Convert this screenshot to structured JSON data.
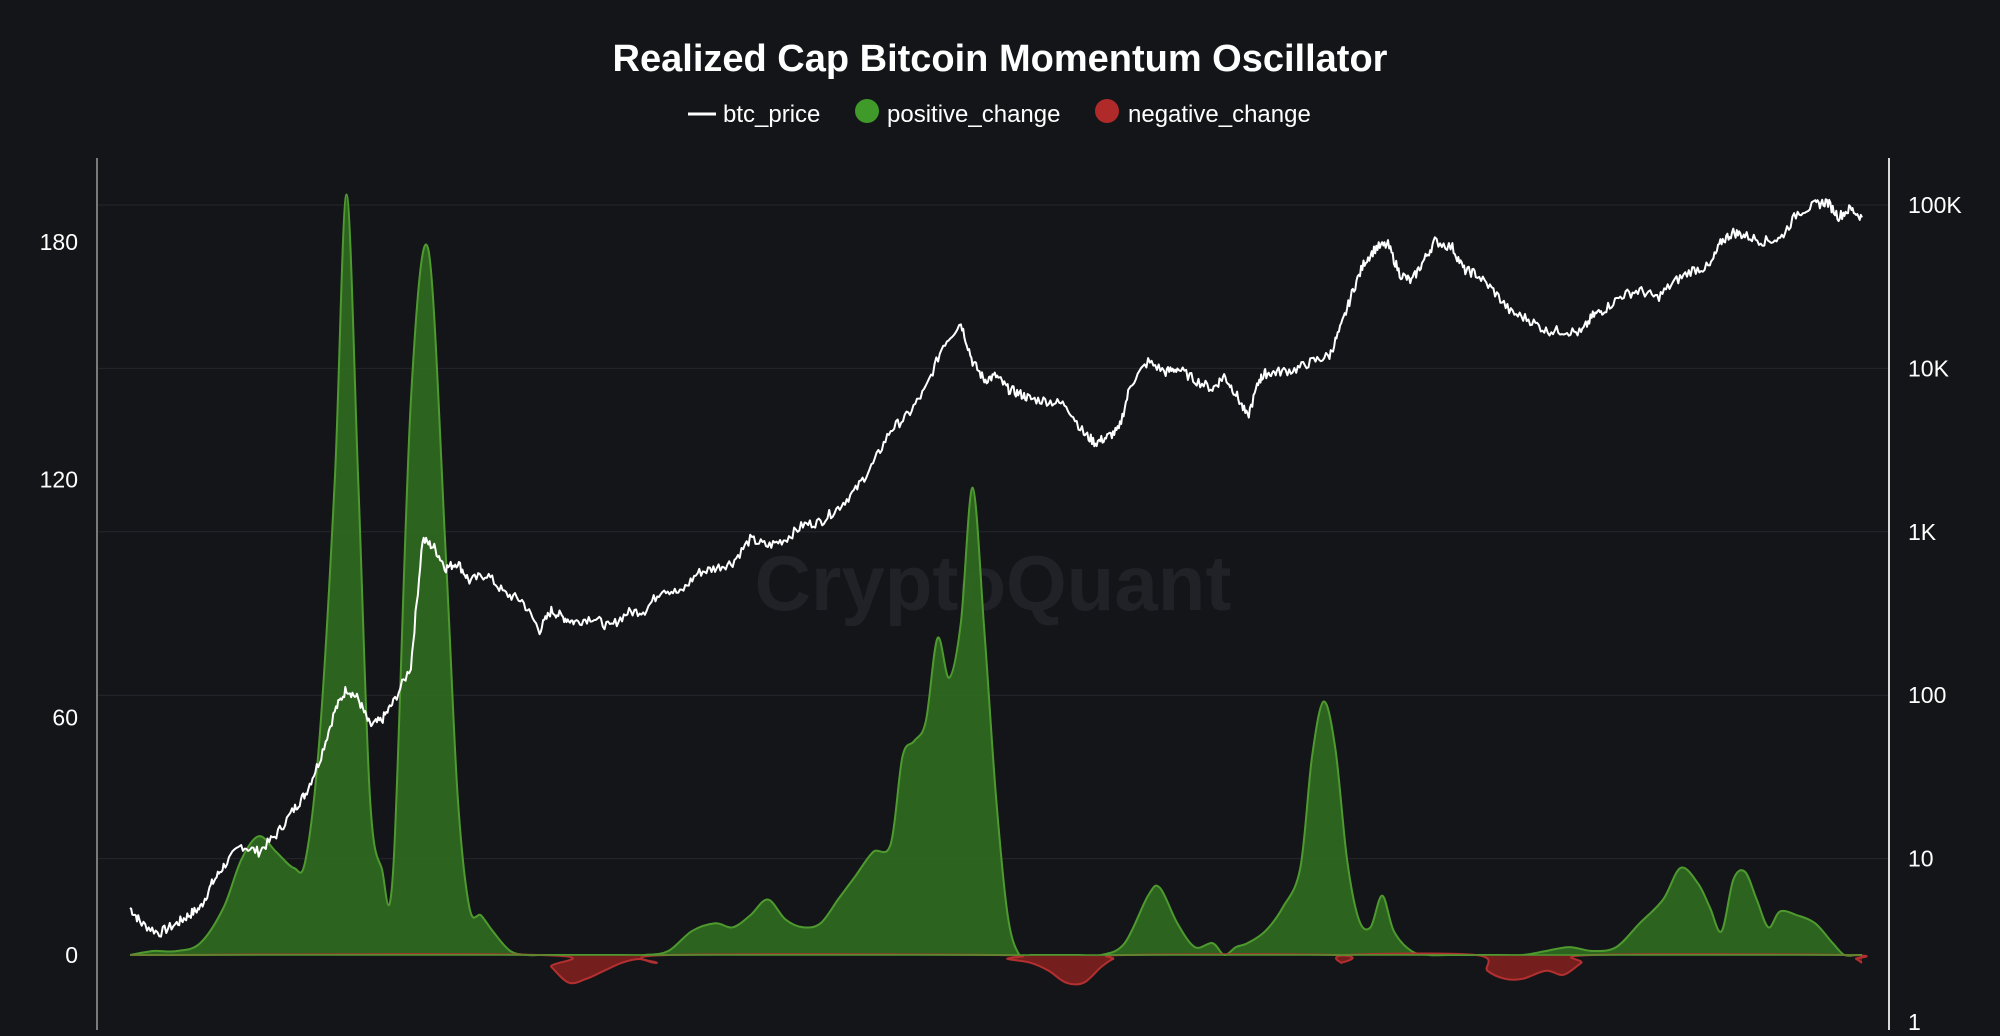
{
  "colors": {
    "background": "#141519",
    "grid": "#24262c",
    "axis": "#d8d8d8",
    "price_line": "#ffffff",
    "positive_fill": "#2f6b1f",
    "positive_stroke": "#4e9a2f",
    "negative_fill": "#7a1f1f",
    "negative_stroke": "#b33030",
    "legend_positive": "#3f9a2a",
    "legend_negative": "#b02a2a"
  },
  "watermark": "CryptoQuant",
  "chart_data": {
    "type": "area",
    "title": "Realized Cap Bitcoin Momentum Oscillator",
    "legend": {
      "placement": "top-center",
      "entries": [
        "btc_price",
        "positive_change",
        "negative_change"
      ]
    },
    "x_range": [
      2010.5,
      2025.3
    ],
    "left_axis": {
      "ticks": [
        0,
        60,
        120,
        180
      ],
      "tick_labels": [
        "0",
        "60",
        "120",
        "180"
      ],
      "range": [
        -18,
        202
      ]
    },
    "right_axis": {
      "scale": "log",
      "ticks": [
        1,
        10,
        100,
        1000,
        10000,
        100000
      ],
      "tick_labels": [
        "1",
        "10",
        "100",
        "1K",
        "10K",
        "100K"
      ],
      "range": [
        1,
        180000
      ]
    },
    "grid": true,
    "series": [
      {
        "name": "positive_change",
        "axis": "left",
        "x": [
          2010.5,
          2010.7,
          2010.9,
          2011.1,
          2011.3,
          2011.45,
          2011.6,
          2011.75,
          2011.9,
          2012.0,
          2012.12,
          2012.25,
          2012.35,
          2012.45,
          2012.55,
          2012.65,
          2012.75,
          2012.9,
          2013.05,
          2013.2,
          2013.3,
          2013.4,
          2013.5,
          2013.6,
          2013.75,
          2013.9,
          2014.0,
          2014.1,
          2014.2,
          2014.3,
          2014.4,
          2014.55,
          2014.7,
          2014.9,
          2015.1,
          2015.3,
          2015.5,
          2015.65,
          2015.8,
          2015.95,
          2016.1,
          2016.25,
          2016.4,
          2016.55,
          2016.7,
          2016.85,
          2017.0,
          2017.1,
          2017.2,
          2017.3,
          2017.4,
          2017.5,
          2017.6,
          2017.7,
          2017.8,
          2017.9,
          2018.0,
          2018.1,
          2018.2,
          2018.4,
          2018.6,
          2018.8,
          2019.0,
          2019.2,
          2019.3,
          2019.45,
          2019.6,
          2019.75,
          2019.85,
          2019.95,
          2020.05,
          2020.2,
          2020.35,
          2020.5,
          2020.6,
          2020.7,
          2020.8,
          2020.9,
          2021.0,
          2021.1,
          2021.2,
          2021.3,
          2021.45,
          2021.6,
          2021.75,
          2021.85,
          2022.0,
          2022.2,
          2022.4,
          2022.6,
          2022.8,
          2023.0,
          2023.2,
          2023.4,
          2023.6,
          2023.75,
          2023.9,
          2024.0,
          2024.1,
          2024.2,
          2024.3,
          2024.4,
          2024.5,
          2024.6,
          2024.75,
          2024.9,
          2025.05,
          2025.15,
          2025.25,
          2025.3
        ],
        "values": [
          0,
          1,
          1,
          3,
          12,
          24,
          30,
          26,
          22,
          24,
          55,
          120,
          192,
          120,
          40,
          22,
          22,
          140,
          178,
          100,
          40,
          12,
          10,
          6,
          1,
          0,
          0,
          0,
          0,
          0,
          0,
          0,
          0,
          0,
          1,
          6,
          8,
          7,
          10,
          14,
          9,
          7,
          8,
          14,
          20,
          26,
          28,
          50,
          54,
          59,
          80,
          70,
          84,
          118,
          82,
          40,
          10,
          0,
          0,
          0,
          0,
          0,
          3,
          15,
          17,
          8,
          2,
          3,
          0,
          2,
          3,
          6,
          12,
          22,
          50,
          64,
          52,
          24,
          9,
          7,
          15,
          6,
          1,
          0,
          0,
          0,
          0,
          0,
          0,
          1,
          2,
          1,
          2,
          8,
          14,
          22,
          18,
          12,
          6,
          19,
          21,
          14,
          7,
          11,
          10,
          8,
          3,
          0,
          0,
          0
        ]
      },
      {
        "name": "negative_change",
        "axis": "left",
        "x": [
          2010.5,
          2014.0,
          2014.1,
          2014.25,
          2014.4,
          2014.55,
          2014.7,
          2014.85,
          2015.0,
          2015.1,
          2017.9,
          2018.0,
          2018.2,
          2018.35,
          2018.5,
          2018.65,
          2018.8,
          2018.9,
          2019.0,
          2020.8,
          2020.85,
          2020.9,
          2022.0,
          2022.1,
          2022.25,
          2022.4,
          2022.6,
          2022.75,
          2022.9,
          2023.0,
          2025.15,
          2025.25,
          2025.3
        ],
        "values": [
          0,
          0,
          -3,
          -7,
          -6,
          -4,
          -2,
          -1,
          -2,
          0,
          0,
          -1,
          -2,
          -4,
          -7,
          -7,
          -3,
          -1,
          0,
          0,
          -2,
          0,
          0,
          -4,
          -6,
          -6,
          -4,
          -5,
          -2,
          0,
          0,
          -1,
          -2
        ]
      },
      {
        "name": "btc_price",
        "axis": "right",
        "x": [
          2010.5,
          2010.6,
          2010.75,
          2010.9,
          2011.0,
          2011.1,
          2011.2,
          2011.3,
          2011.45,
          2011.6,
          2011.75,
          2011.9,
          2012.0,
          2012.12,
          2012.25,
          2012.35,
          2012.45,
          2012.55,
          2012.65,
          2012.75,
          2012.9,
          2013.0,
          2013.1,
          2013.2,
          2013.3,
          2013.4,
          2013.55,
          2013.7,
          2013.85,
          2014.0,
          2014.1,
          2014.2,
          2014.3,
          2014.45,
          2014.6,
          2014.75,
          2014.9,
          2015.05,
          2015.2,
          2015.35,
          2015.5,
          2015.65,
          2015.8,
          2015.95,
          2016.1,
          2016.25,
          2016.4,
          2016.55,
          2016.7,
          2016.85,
          2017.0,
          2017.15,
          2017.3,
          2017.45,
          2017.6,
          2017.7,
          2017.8,
          2017.9,
          2018.0,
          2018.1,
          2018.2,
          2018.35,
          2018.5,
          2018.65,
          2018.75,
          2018.85,
          2018.95,
          2019.05,
          2019.2,
          2019.35,
          2019.45,
          2019.6,
          2019.75,
          2019.85,
          2019.95,
          2020.05,
          2020.15,
          2020.2,
          2020.3,
          2020.45,
          2020.6,
          2020.75,
          2020.85,
          2020.95,
          2021.05,
          2021.15,
          2021.25,
          2021.35,
          2021.45,
          2021.55,
          2021.65,
          2021.8,
          2021.9,
          2022.0,
          2022.15,
          2022.3,
          2022.45,
          2022.6,
          2022.75,
          2022.9,
          2023.0,
          2023.1,
          2023.25,
          2023.4,
          2023.55,
          2023.7,
          2023.85,
          2024.0,
          2024.1,
          2024.2,
          2024.3,
          2024.45,
          2024.6,
          2024.75,
          2024.9,
          2025.0,
          2025.1,
          2025.2,
          2025.3
        ],
        "values": [
          5,
          4,
          3.5,
          4,
          4.5,
          5,
          7,
          9,
          12,
          11,
          14,
          20,
          25,
          40,
          80,
          110,
          95,
          65,
          70,
          90,
          150,
          900,
          800,
          600,
          650,
          500,
          550,
          420,
          380,
          250,
          330,
          300,
          280,
          300,
          260,
          320,
          330,
          450,
          420,
          560,
          600,
          650,
          900,
          820,
          900,
          1100,
          1150,
          1400,
          1800,
          2600,
          4200,
          5200,
          7500,
          14000,
          19000,
          11000,
          8500,
          9000,
          7500,
          7000,
          6500,
          6300,
          6000,
          4000,
          3500,
          3800,
          4200,
          8000,
          11000,
          9500,
          10000,
          8500,
          7500,
          9000,
          7000,
          5000,
          8500,
          9300,
          9500,
          9800,
          11000,
          12000,
          18000,
          30000,
          45000,
          55000,
          57000,
          38000,
          34000,
          45000,
          60000,
          55000,
          40000,
          38000,
          30000,
          22000,
          20000,
          17000,
          17000,
          16500,
          21000,
          23000,
          28000,
          30000,
          27000,
          34000,
          40000,
          42000,
          60000,
          68000,
          65000,
          60000,
          62000,
          90000,
          100000,
          105000,
          85000,
          95000,
          84000
        ]
      }
    ]
  }
}
